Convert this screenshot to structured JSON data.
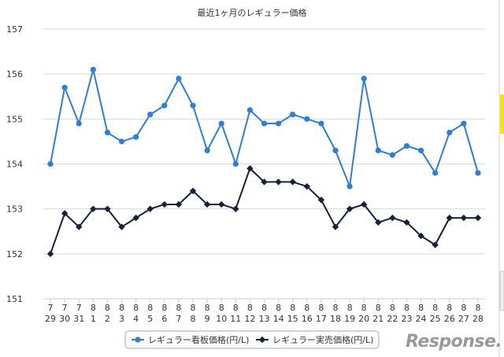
{
  "chart_data": {
    "type": "line",
    "title": "最近1ヶ月のレギュラー価格",
    "categories": [
      [
        "7",
        "29"
      ],
      [
        "7",
        "30"
      ],
      [
        "7",
        "31"
      ],
      [
        "8",
        "1"
      ],
      [
        "8",
        "2"
      ],
      [
        "8",
        "3"
      ],
      [
        "8",
        "4"
      ],
      [
        "8",
        "5"
      ],
      [
        "8",
        "6"
      ],
      [
        "8",
        "7"
      ],
      [
        "8",
        "8"
      ],
      [
        "8",
        "9"
      ],
      [
        "8",
        "10"
      ],
      [
        "8",
        "11"
      ],
      [
        "8",
        "12"
      ],
      [
        "8",
        "13"
      ],
      [
        "8",
        "14"
      ],
      [
        "8",
        "15"
      ],
      [
        "8",
        "16"
      ],
      [
        "8",
        "17"
      ],
      [
        "8",
        "18"
      ],
      [
        "8",
        "19"
      ],
      [
        "8",
        "20"
      ],
      [
        "8",
        "21"
      ],
      [
        "8",
        "22"
      ],
      [
        "8",
        "23"
      ],
      [
        "8",
        "24"
      ],
      [
        "8",
        "25"
      ],
      [
        "8",
        "26"
      ],
      [
        "8",
        "27"
      ],
      [
        "8",
        "28"
      ]
    ],
    "series": [
      {
        "name": "レギュラー看板価格(円/L)",
        "color": "#2e7ed6",
        "marker": "circle",
        "values": [
          154.0,
          155.7,
          154.9,
          156.1,
          154.7,
          154.5,
          154.6,
          155.1,
          155.3,
          155.9,
          155.3,
          154.3,
          154.9,
          154.0,
          155.2,
          154.9,
          154.9,
          155.1,
          155.0,
          154.9,
          154.3,
          153.5,
          155.9,
          154.3,
          154.2,
          154.4,
          154.3,
          153.8,
          154.7,
          154.9,
          153.8
        ]
      },
      {
        "name": "レギュラー実売価格(円/L)",
        "color": "#16213e",
        "marker": "diamond",
        "values": [
          152.0,
          152.9,
          152.6,
          153.0,
          153.0,
          152.6,
          152.8,
          153.0,
          153.1,
          153.1,
          153.4,
          153.1,
          153.1,
          153.0,
          153.9,
          153.6,
          153.6,
          153.6,
          153.5,
          153.2,
          152.6,
          153.0,
          153.1,
          152.7,
          152.8,
          152.7,
          152.4,
          152.2,
          152.8,
          152.8,
          152.8
        ]
      }
    ],
    "ylim": [
      151,
      157
    ],
    "yticks": [
      "151",
      "152",
      "153",
      "154",
      "155",
      "156",
      "157"
    ],
    "grid": true,
    "legend_position": "bottom-center"
  },
  "watermark": {
    "text": "Response."
  }
}
